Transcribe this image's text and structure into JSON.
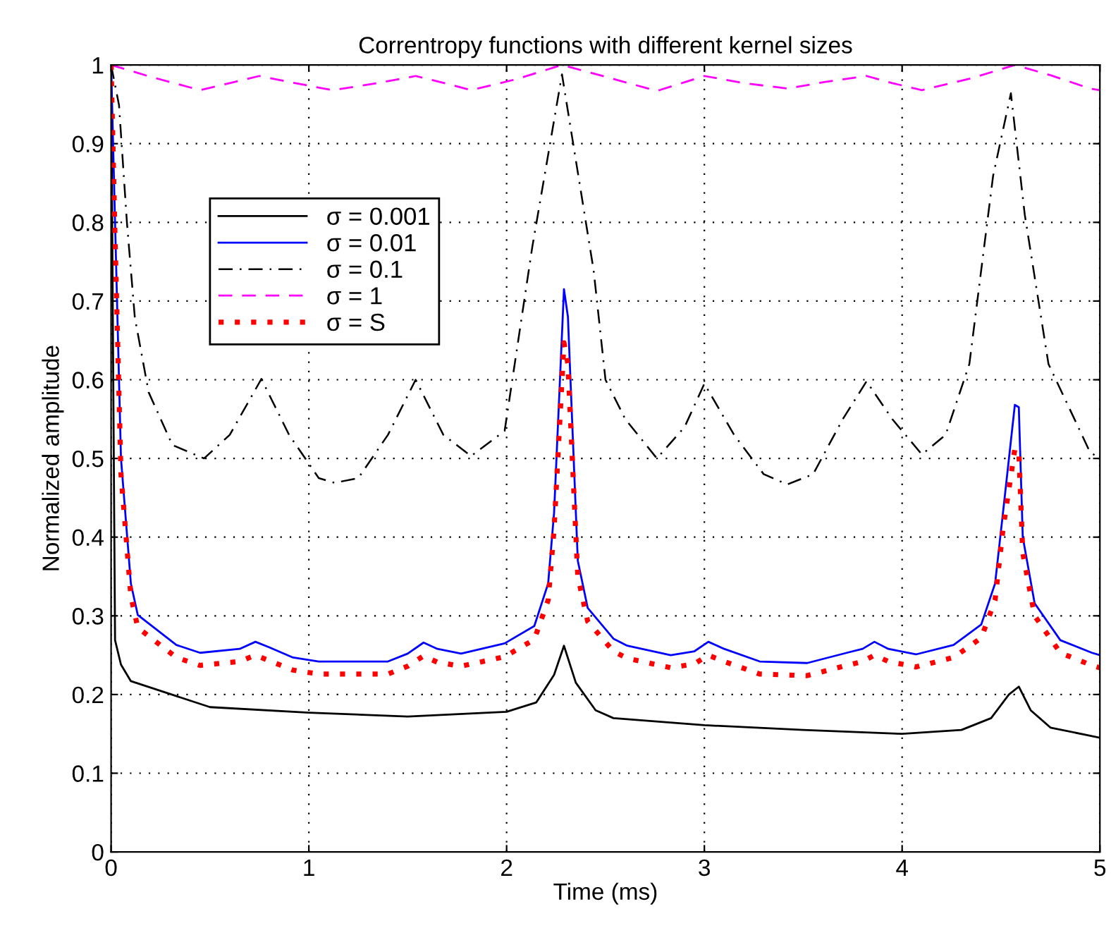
{
  "chart_data": {
    "type": "line",
    "title": "Correntropy functions with different kernel sizes",
    "xlabel": "Time (ms)",
    "ylabel": "Normalized amplitude",
    "xlim": [
      0,
      5
    ],
    "ylim": [
      0,
      1
    ],
    "xticks": [
      0,
      1,
      2,
      3,
      4,
      5
    ],
    "yticks": [
      0,
      {
        "value": 0.1,
        "label": "0.1"
      },
      {
        "value": 0.2,
        "label": "0.2"
      },
      {
        "value": 0.3,
        "label": "0.3"
      },
      {
        "value": 0.4,
        "label": "0.4"
      },
      {
        "value": 0.5,
        "label": "0.5"
      },
      {
        "value": 0.6,
        "label": "0.6"
      },
      {
        "value": 0.7,
        "label": "0.7"
      },
      {
        "value": 0.8,
        "label": "0.8"
      },
      {
        "value": 0.9,
        "label": "0.9"
      },
      1
    ],
    "grid": true,
    "legend": "top left",
    "marker": "none",
    "series": [
      {
        "name": "σ = 0.001",
        "color": "#000000",
        "line_style": "solid",
        "x": [
          0,
          0.02,
          0.05,
          0.1,
          0.5,
          1,
          1.5,
          2,
          2.15,
          2.24,
          2.29,
          2.35,
          2.45,
          2.54,
          3,
          3.5,
          4,
          4.3,
          4.45,
          4.54,
          4.59,
          4.65,
          4.75,
          5
        ],
        "values": [
          1,
          0.269,
          0.238,
          0.217,
          0.184,
          0.177,
          0.172,
          0.178,
          0.19,
          0.225,
          0.262,
          0.215,
          0.18,
          0.17,
          0.161,
          0.155,
          0.15,
          0.155,
          0.17,
          0.2,
          0.21,
          0.18,
          0.158,
          0.145
        ]
      },
      {
        "name": "σ = 0.01",
        "color": "#0000ff",
        "line_style": "solid",
        "x": [
          0,
          0.02,
          0.05,
          0.1,
          0.135,
          0.33,
          0.45,
          0.65,
          0.73,
          0.8,
          0.92,
          1.05,
          1.4,
          1.5,
          1.58,
          1.65,
          1.77,
          1.99,
          2.14,
          2.21,
          2.24,
          2.29,
          2.31,
          2.36,
          2.41,
          2.54,
          2.61,
          2.83,
          2.95,
          3.02,
          3.1,
          3.28,
          3.52,
          3.72,
          3.8,
          3.86,
          3.93,
          4.07,
          4.26,
          4.4,
          4.47,
          4.51,
          4.57,
          4.59,
          4.61,
          4.67,
          4.8,
          4.96,
          5
        ],
        "values": [
          1,
          0.8,
          0.5,
          0.341,
          0.301,
          0.263,
          0.253,
          0.258,
          0.267,
          0.26,
          0.247,
          0.242,
          0.242,
          0.252,
          0.266,
          0.258,
          0.252,
          0.265,
          0.287,
          0.341,
          0.431,
          0.715,
          0.68,
          0.37,
          0.31,
          0.271,
          0.262,
          0.25,
          0.255,
          0.267,
          0.258,
          0.242,
          0.24,
          0.253,
          0.258,
          0.267,
          0.258,
          0.251,
          0.263,
          0.289,
          0.341,
          0.431,
          0.568,
          0.565,
          0.4,
          0.316,
          0.269,
          0.253,
          0.25
        ]
      },
      {
        "name": "σ = 0.1",
        "color": "#000000",
        "line_style": "dashdot",
        "x": [
          0,
          0.04,
          0.08,
          0.12,
          0.19,
          0.31,
          0.47,
          0.6,
          0.76,
          0.9,
          1.05,
          1.13,
          1.25,
          1.4,
          1.54,
          1.68,
          1.82,
          1.99,
          2.13,
          2.28,
          2.44,
          2.5,
          2.6,
          2.76,
          2.9,
          3.0,
          3.15,
          3.3,
          3.42,
          3.55,
          3.7,
          3.82,
          3.95,
          4.1,
          4.22,
          4.34,
          4.46,
          4.55,
          4.62,
          4.74,
          4.95,
          5
        ],
        "values": [
          1,
          0.949,
          0.8,
          0.679,
          0.584,
          0.517,
          0.5,
          0.53,
          0.601,
          0.53,
          0.475,
          0.469,
          0.475,
          0.53,
          0.6,
          0.53,
          0.503,
          0.535,
          0.769,
          0.988,
          0.739,
          0.6,
          0.55,
          0.5,
          0.54,
          0.595,
          0.53,
          0.48,
          0.467,
          0.48,
          0.55,
          0.598,
          0.55,
          0.505,
          0.53,
          0.62,
          0.859,
          0.964,
          0.81,
          0.62,
          0.508,
          0.5
        ]
      },
      {
        "name": "σ = 1",
        "color": "#ff00ff",
        "line_style": "dashed",
        "x": [
          0,
          0.2,
          0.45,
          0.6,
          0.75,
          0.95,
          1.12,
          1.35,
          1.54,
          1.7,
          1.82,
          2.05,
          2.28,
          2.5,
          2.76,
          2.9,
          3.0,
          3.2,
          3.42,
          3.6,
          3.82,
          3.95,
          4.1,
          4.35,
          4.57,
          4.75,
          4.95,
          5
        ],
        "values": [
          1,
          0.985,
          0.968,
          0.977,
          0.986,
          0.976,
          0.968,
          0.977,
          0.986,
          0.976,
          0.968,
          0.982,
          1,
          0.985,
          0.967,
          0.978,
          0.986,
          0.977,
          0.97,
          0.978,
          0.986,
          0.977,
          0.968,
          0.983,
          1,
          0.987,
          0.97,
          0.968
        ]
      },
      {
        "name": "σ = S",
        "color": "#ff0000",
        "line_style": "dotted",
        "x": [
          0,
          0.02,
          0.05,
          0.1,
          0.135,
          0.33,
          0.45,
          0.65,
          0.73,
          0.8,
          0.92,
          1.05,
          1.4,
          1.5,
          1.58,
          1.65,
          1.77,
          1.99,
          2.14,
          2.21,
          2.24,
          2.29,
          2.31,
          2.36,
          2.41,
          2.54,
          2.61,
          2.83,
          2.95,
          3.02,
          3.1,
          3.28,
          3.52,
          3.72,
          3.8,
          3.86,
          3.93,
          4.07,
          4.26,
          4.4,
          4.47,
          4.51,
          4.57,
          4.59,
          4.61,
          4.67,
          4.8,
          4.96,
          5
        ],
        "values": [
          1,
          0.78,
          0.48,
          0.325,
          0.285,
          0.247,
          0.237,
          0.242,
          0.25,
          0.243,
          0.231,
          0.226,
          0.226,
          0.236,
          0.249,
          0.241,
          0.236,
          0.248,
          0.27,
          0.32,
          0.41,
          0.647,
          0.62,
          0.35,
          0.293,
          0.255,
          0.246,
          0.234,
          0.239,
          0.25,
          0.242,
          0.226,
          0.224,
          0.237,
          0.242,
          0.25,
          0.242,
          0.235,
          0.247,
          0.272,
          0.32,
          0.41,
          0.512,
          0.51,
          0.38,
          0.3,
          0.253,
          0.237,
          0.234
        ]
      }
    ]
  }
}
